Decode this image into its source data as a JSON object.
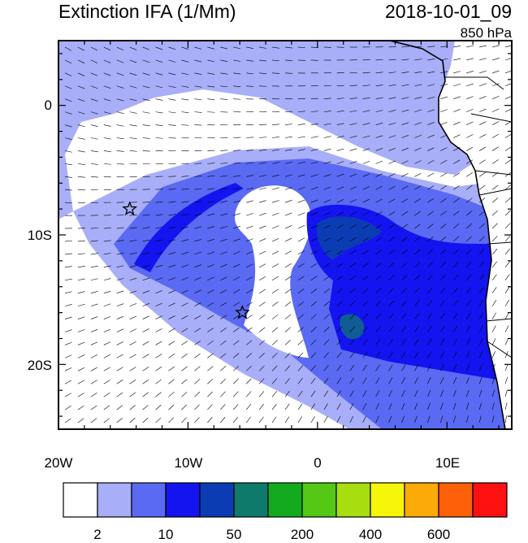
{
  "title_left": "Extinction IFA (1/Mm)",
  "title_right": "2018-10-01_09",
  "level": "850 hPa",
  "x_ticks": [
    "20W",
    "10W",
    "0",
    "10E"
  ],
  "y_ticks": [
    "0",
    "10S",
    "20S"
  ],
  "colorbar": {
    "colors": [
      "#ffffff",
      "#a8aef8",
      "#5a6af2",
      "#1414f0",
      "#0c3cb4",
      "#0e7a6c",
      "#14aa20",
      "#54c814",
      "#a6de10",
      "#f6f60a",
      "#fcaa08",
      "#fc6008",
      "#fc1010"
    ],
    "labels": [
      "2",
      "10",
      "50",
      "200",
      "400",
      "600"
    ]
  },
  "markers": [
    {
      "name": "star-14w-8s",
      "lon": -14.5,
      "lat": -8
    },
    {
      "name": "star-6w-16s",
      "lon": -5.8,
      "lat": -16
    }
  ],
  "map_colors": {
    "ocean_low": "#ffffff",
    "plume_light": "#a8aef8",
    "plume_mid": "#5a6af2",
    "plume_core": "#1414f0",
    "plume_dense": "#0c3cb4",
    "plume_peak": "#0e7a6c"
  }
}
